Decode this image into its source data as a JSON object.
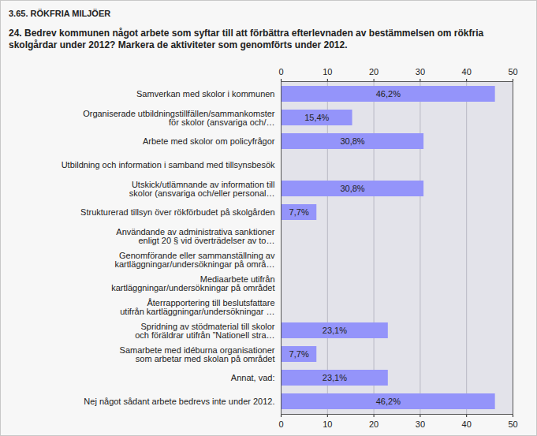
{
  "chart_data": {
    "type": "bar",
    "orientation": "horizontal",
    "title": "3.65. RÖKFRIA MILJÖER",
    "subtitle": "24. Bedrev kommunen något arbete som syftar till att förbättra efterlevnaden av bestämmelsen om rökfria skolgårdar under 2012? Markera de aktiviteter som genomförts under 2012.",
    "categories": [
      "Samverkan med skolor i kommunen",
      "Organiserade utbildningstillfällen/sammankomster\nför skolor (ansvariga och/…",
      "Arbete med skolor om policyfrågor",
      "Utbildning och information i samband med tillsynsbesök",
      "Utskick/utlämnande av information till\nskolor (ansvariga och/eller personal…",
      "Strukturerad tillsyn över rökförbudet på skolgården",
      "Användande av administrativa sanktioner\nenligt 20 § vid överträdelser av to…",
      "Genomförande eller sammanställning av\nkartläggningar/undersökningar på områ…",
      "Mediaarbete utifrån\nkartläggningar/undersökningar på området",
      "Återrapportering till beslutsfattare\nutifrån kartläggningar/undersökningar …",
      "Spridning av stödmaterial till skolor\noch föräldrar utifrån ”Nationell stra…",
      "Samarbete med idéburna organisationer\nsom arbetar med skolan på området",
      "Annat, vad:",
      "Nej något sådant arbete bedrevs inte under 2012."
    ],
    "values": [
      46.2,
      15.4,
      30.8,
      0,
      30.8,
      7.7,
      0,
      0,
      0,
      0,
      23.1,
      7.7,
      23.1,
      46.2
    ],
    "value_labels": [
      "46,2%",
      "15,4%",
      "30,8%",
      null,
      "30,8%",
      "7,7%",
      null,
      null,
      null,
      null,
      "23,1%",
      "7,7%",
      "23,1%",
      "46,2%"
    ],
    "data_labels": true,
    "color": "#9494fa",
    "xlim": [
      0,
      50
    ],
    "xticks": [
      0,
      10,
      20,
      30,
      40,
      50
    ],
    "grid": true
  }
}
